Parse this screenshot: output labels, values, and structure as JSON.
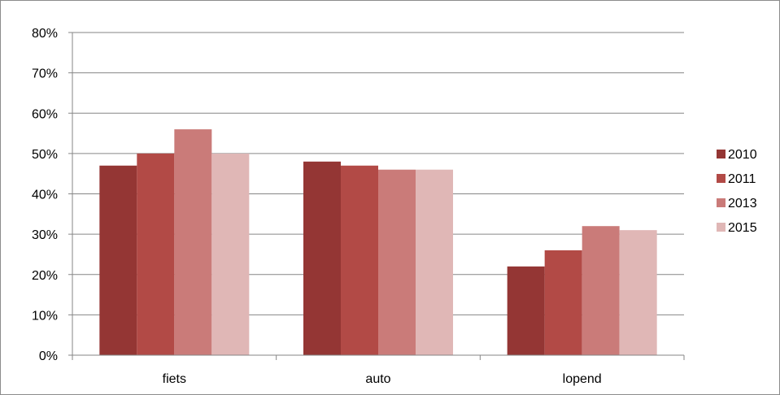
{
  "chart_data": {
    "type": "bar",
    "categories": [
      "fiets",
      "auto",
      "lopend"
    ],
    "series": [
      {
        "name": "2010",
        "color": "#943634",
        "values": [
          47,
          48,
          22
        ]
      },
      {
        "name": "2011",
        "color": "#b24a46",
        "values": [
          50,
          47,
          26
        ]
      },
      {
        "name": "2013",
        "color": "#ca7b79",
        "values": [
          56,
          46,
          32
        ]
      },
      {
        "name": "2015",
        "color": "#e0b7b6",
        "values": [
          50,
          46,
          31
        ]
      }
    ],
    "yticks": [
      "0%",
      "10%",
      "20%",
      "30%",
      "40%",
      "50%",
      "60%",
      "70%",
      "80%"
    ],
    "ylim": [
      0,
      80
    ],
    "unit": "%",
    "grid": true,
    "legend_position": "right",
    "title": "",
    "xlabel": "",
    "ylabel": ""
  }
}
